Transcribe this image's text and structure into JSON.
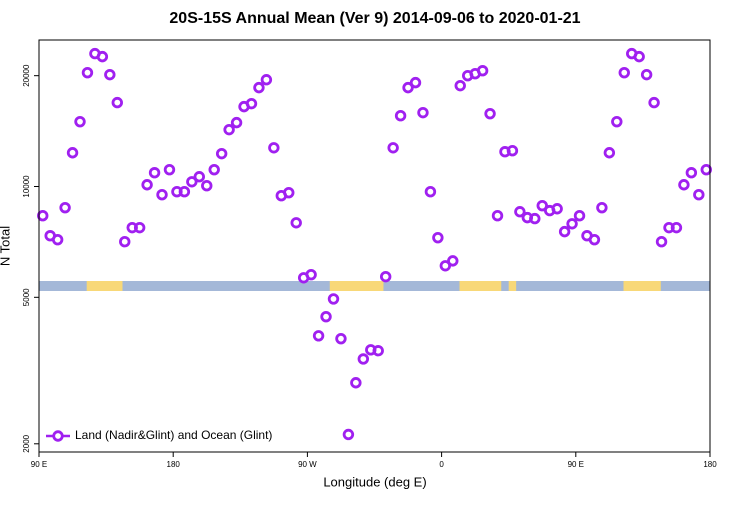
{
  "chart_data": {
    "type": "scatter",
    "title": "20S-15S Annual Mean (Ver 9)   2014-09-06 to 2020-01-21",
    "x_label": "Longitude (deg E)",
    "y_label": "N Total",
    "log_y": true,
    "legend_position": "bottom-left",
    "xlim": [
      90,
      540
    ],
    "xticks": [
      {
        "value": 90,
        "label": "90 E"
      },
      180,
      {
        "value": 270,
        "label": "90 W"
      },
      {
        "value": 360,
        "label": "0"
      },
      {
        "value": 450,
        "label": "90 E"
      },
      {
        "value": 540,
        "label": "180"
      }
    ],
    "ylim": [
      1900,
      25000
    ],
    "yticks": [
      2000,
      5000,
      10000,
      20000
    ],
    "surface_strip": {
      "ocean_color": "#a4b8d8",
      "land_color": "#f8d878",
      "land_ranges": [
        [
          122,
          146
        ],
        [
          285,
          321
        ],
        [
          372,
          400
        ],
        [
          405,
          410
        ],
        [
          482,
          507
        ]
      ]
    },
    "series": [
      {
        "name": "Land (Nadir&Glint) and Ocean (Glint)",
        "color": "#a020f0",
        "x": [
          92.5,
          97.5,
          102.5,
          107.5,
          112.5,
          117.5,
          122.5,
          127.5,
          132.5,
          137.5,
          142.5,
          147.5,
          152.5,
          157.5,
          162.5,
          167.5,
          172.5,
          177.5,
          182.5,
          187.5,
          192.5,
          197.5,
          202.5,
          207.5,
          212.5,
          217.5,
          222.5,
          227.5,
          232.5,
          237.5,
          242.5,
          247.5,
          252.5,
          257.5,
          262.5,
          267.5,
          272.5,
          277.5,
          282.5,
          287.5,
          292.5,
          297.5,
          302.5,
          307.5,
          312.5,
          317.5,
          322.5,
          327.5,
          332.5,
          337.5,
          342.5,
          347.5,
          352.5,
          357.5,
          362.5,
          367.5,
          372.5,
          377.5,
          382.5,
          387.5,
          392.5,
          397.5,
          402.5,
          407.5,
          412.5,
          417.5,
          422.5,
          427.5,
          432.5,
          437.5,
          442.5,
          447.5,
          452.5,
          457.5,
          462.5,
          467.5,
          472.5,
          477.5,
          482.5,
          487.5,
          492.5,
          497.5,
          502.5,
          507.5,
          512.5,
          517.5,
          522.5,
          527.5,
          532.5,
          537.5
        ],
        "values": [
          8330,
          7350,
          7170,
          8760,
          12350,
          15000,
          20380,
          22960,
          22530,
          20130,
          16900,
          7080,
          7730,
          7730,
          10110,
          10900,
          9500,
          11110,
          9680,
          9680,
          10300,
          10630,
          10050,
          11110,
          12280,
          14270,
          14910,
          16480,
          16790,
          18560,
          19500,
          12740,
          9440,
          9620,
          7970,
          5650,
          5760,
          3930,
          4430,
          4950,
          3860,
          2120,
          2930,
          3400,
          3600,
          3580,
          5690,
          12740,
          15570,
          18560,
          19150,
          15870,
          9680,
          7260,
          6090,
          6280,
          18790,
          20000,
          20250,
          20630,
          15770,
          8330,
          12430,
          12510,
          8540,
          8230,
          8180,
          8870,
          8600,
          8700,
          7540,
          7920,
          8330,
          7350,
          7170,
          8760,
          12350,
          15000,
          20380,
          22960,
          22530,
          20130,
          16900,
          7080,
          7730,
          7730,
          10110,
          10900,
          9500,
          11110
        ]
      }
    ]
  }
}
